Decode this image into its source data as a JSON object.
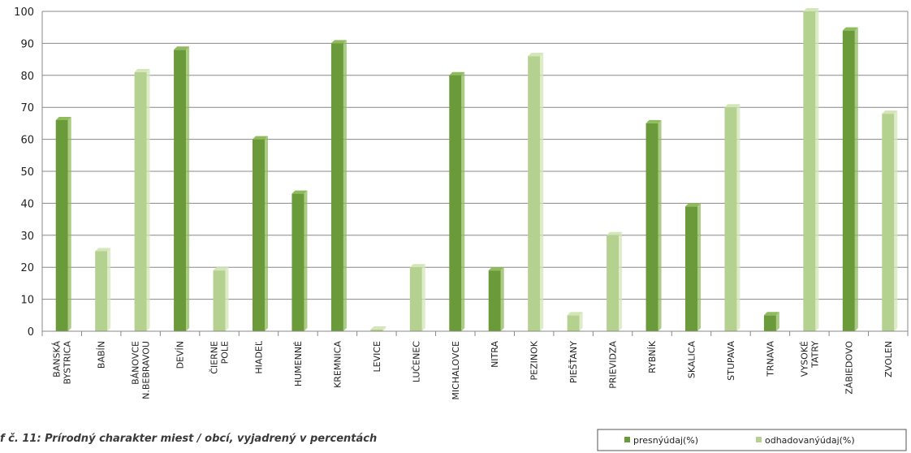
{
  "caption": "f č. 11: Prírodný charakter miest / obcí, vyjadrený v percentách",
  "chart_data": {
    "type": "bar",
    "categories": [
      [
        "BANSKÁ",
        "BYSTRICA"
      ],
      [
        "BABÍN"
      ],
      [
        "BÁNOVCE",
        "N.BEBRAVOU"
      ],
      [
        "DEVÍN"
      ],
      [
        "ČIERNE",
        "POLE"
      ],
      [
        "HIADEĽ"
      ],
      [
        "HUMENNÉ"
      ],
      [
        "KREMNICA"
      ],
      [
        "LEVICE"
      ],
      [
        "LUČENEC"
      ],
      [
        "MICHALOVCE"
      ],
      [
        "NITRA"
      ],
      [
        "PEZINOK"
      ],
      [
        "PIEŠŤANY"
      ],
      [
        "PRIEVIDZA"
      ],
      [
        "RYBNÍK"
      ],
      [
        "SKALICA"
      ],
      [
        "STUPAVA"
      ],
      [
        "TRNAVA"
      ],
      [
        "VYSOKÉ",
        "TATRY"
      ],
      [
        "ZÁBIEDOVO"
      ],
      [
        "ZVOLEN"
      ]
    ],
    "series": [
      {
        "name": "presnýúdaj(%)",
        "color": "#6b9a3a",
        "top_color": "#8fbb5c",
        "values": [
          66,
          null,
          null,
          88,
          null,
          60,
          43,
          90,
          null,
          null,
          80,
          19,
          null,
          null,
          null,
          65,
          39,
          null,
          5,
          null,
          94,
          null
        ]
      },
      {
        "name": "odhadovanýúdaj(%)",
        "color": "#b5d190",
        "top_color": "#d3e6b8",
        "values": [
          null,
          25,
          81,
          null,
          19,
          null,
          null,
          null,
          0.5,
          20,
          null,
          null,
          86,
          5,
          30,
          null,
          null,
          70,
          null,
          100,
          null,
          68
        ]
      }
    ],
    "y_ticks": [
      "0",
      "10",
      "20",
      "30",
      "40",
      "50",
      "60",
      "70",
      "80",
      "90",
      "100"
    ],
    "ylim": [
      0,
      100
    ],
    "grid": true,
    "legend_position": "bottom-right"
  }
}
